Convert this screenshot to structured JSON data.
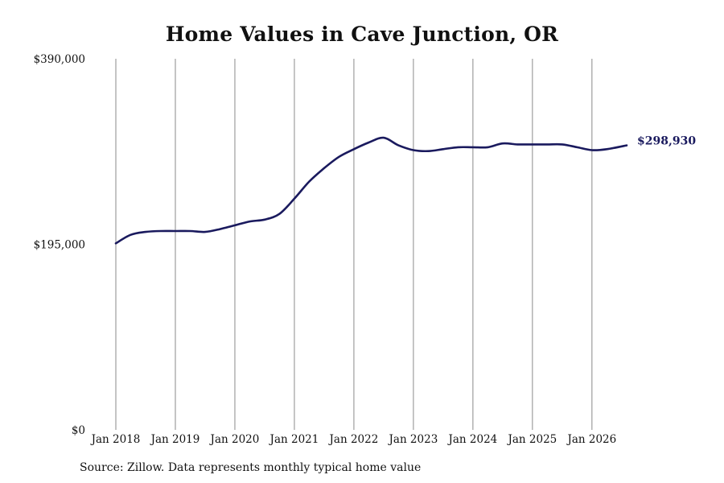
{
  "chart_data": {
    "type": "line",
    "title": "Home Values in Cave Junction, OR",
    "xlabel": "",
    "ylabel": "",
    "x_ticks": [
      "Jan 2018",
      "Jan 2019",
      "Jan 2020",
      "Jan 2021",
      "Jan 2022",
      "Jan 2023",
      "Jan 2024",
      "Jan 2025",
      "Jan 2026"
    ],
    "y_ticks": [
      "$0",
      "$195,000",
      "$390,000"
    ],
    "ylim": [
      0,
      390000
    ],
    "xlim": [
      "2018-01",
      "2026-08"
    ],
    "grid": "vertical",
    "line_color": "#1a1a5e",
    "last_value_label": "$298,930",
    "series": [
      {
        "x": [
          "2018-01",
          "2018-04",
          "2018-07",
          "2018-10",
          "2019-01",
          "2019-04",
          "2019-07",
          "2019-10",
          "2020-01",
          "2020-04",
          "2020-07",
          "2020-10",
          "2021-01",
          "2021-04",
          "2021-07",
          "2021-10",
          "2022-01",
          "2022-04",
          "2022-07",
          "2022-10",
          "2023-01",
          "2023-04",
          "2023-07",
          "2023-10",
          "2024-01",
          "2024-04",
          "2024-07",
          "2024-10",
          "2025-01",
          "2025-04",
          "2025-07",
          "2025-10",
          "2026-01",
          "2026-04",
          "2026-08"
        ],
        "values": [
          196000,
          205000,
          208000,
          209000,
          209000,
          209000,
          208000,
          211000,
          215000,
          219000,
          221000,
          227000,
          243000,
          261000,
          275000,
          287000,
          295000,
          302000,
          307000,
          299000,
          294000,
          293000,
          295000,
          297000,
          297000,
          297000,
          301000,
          300000,
          300000,
          300000,
          300000,
          297000,
          294000,
          295000,
          298930
        ]
      }
    ]
  },
  "source_note": "Source: Zillow. Data represents monthly typical home value"
}
